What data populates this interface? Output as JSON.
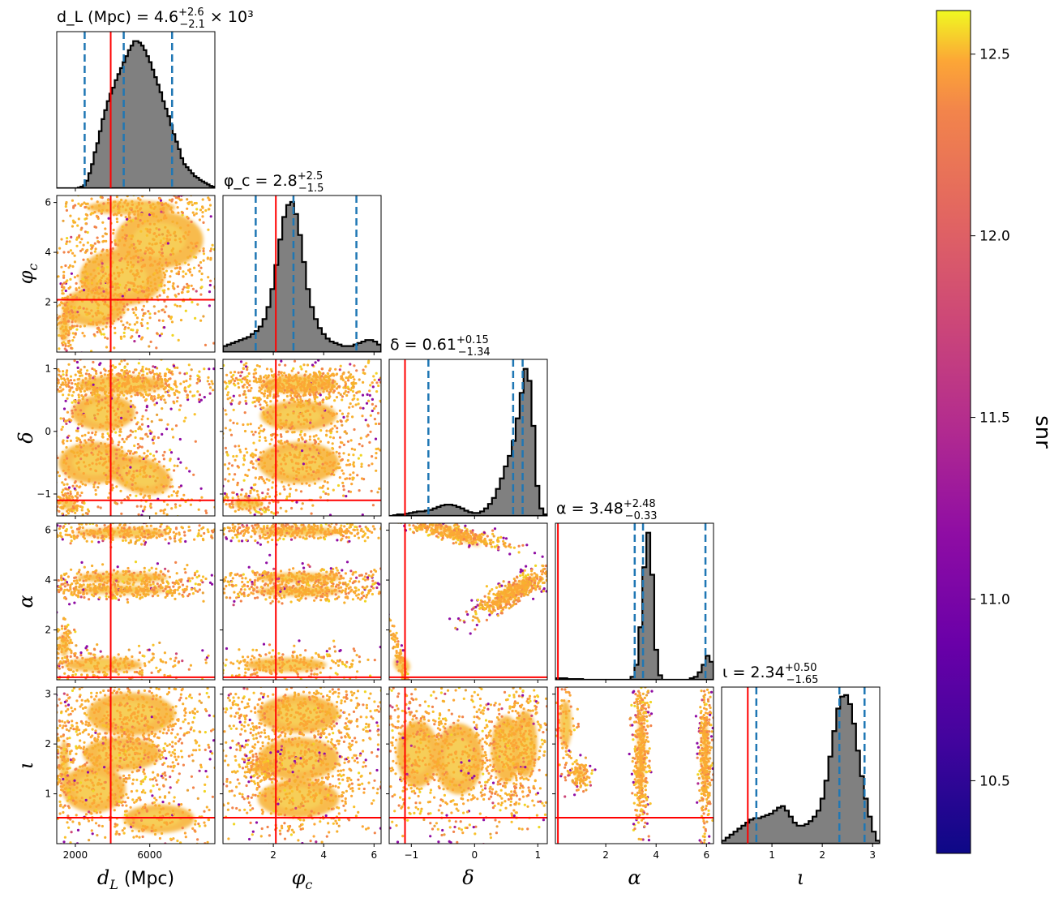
{
  "chart_data": {
    "type": "scatter",
    "layout": "corner plot (lower-triangular scatter matrix with marginal histograms)",
    "parameters": [
      {
        "key": "dL",
        "label": "d_L (Mpc)",
        "range": [
          1000,
          9500
        ],
        "ticks": [
          2000,
          6000
        ],
        "ticklabels": [
          "2000",
          "6000"
        ],
        "true_value": 3900,
        "title": {
          "pre": "d_L (Mpc) = 4.6",
          "sup": "+2.6",
          "sub": "−2.1",
          "post": " × 10³"
        },
        "quantiles": [
          2500,
          4600,
          7200
        ],
        "hist": [
          0,
          0,
          0,
          0,
          0,
          0,
          0,
          0,
          0.004,
          0.01,
          0.02,
          0.05,
          0.1,
          0.16,
          0.24,
          0.3,
          0.38,
          0.46,
          0.52,
          0.58,
          0.63,
          0.67,
          0.72,
          0.76,
          0.8,
          0.84,
          0.88,
          0.92,
          0.95,
          0.98,
          0.98,
          0.97,
          0.95,
          0.92,
          0.88,
          0.84,
          0.79,
          0.74,
          0.69,
          0.64,
          0.58,
          0.53,
          0.48,
          0.42,
          0.36,
          0.31,
          0.26,
          0.2,
          0.16,
          0.14,
          0.12,
          0.1,
          0.08,
          0.07,
          0.055,
          0.045,
          0.035,
          0.025,
          0.015,
          0.01
        ]
      },
      {
        "key": "phic",
        "label": "φ_c",
        "range": [
          0,
          6.28
        ],
        "ticks": [
          2,
          4,
          6
        ],
        "ticklabels": [
          "2",
          "4",
          "6"
        ],
        "true_value": 2.1,
        "title": {
          "pre": "φ_c = 2.8",
          "sup": "+2.5",
          "sub": "−1.5",
          "post": ""
        },
        "quantiles": [
          1.3,
          2.8,
          5.3
        ],
        "hist": [
          0.04,
          0.05,
          0.06,
          0.07,
          0.08,
          0.09,
          0.1,
          0.12,
          0.14,
          0.17,
          0.22,
          0.3,
          0.42,
          0.58,
          0.75,
          0.9,
          0.98,
          1.0,
          0.92,
          0.78,
          0.6,
          0.42,
          0.3,
          0.22,
          0.16,
          0.12,
          0.09,
          0.07,
          0.06,
          0.05,
          0.04,
          0.04,
          0.04,
          0.05,
          0.06,
          0.07,
          0.08,
          0.08,
          0.07,
          0.05
        ]
      },
      {
        "key": "delta",
        "label": "δ",
        "range": [
          -1.35,
          1.15
        ],
        "ticks": [
          -1,
          0,
          1
        ],
        "ticklabels": [
          "−1",
          "0",
          "1"
        ],
        "true_value": -1.1,
        "title": {
          "pre": "δ = 0.61",
          "sup": "+0.15",
          "sub": "−1.34",
          "post": ""
        },
        "quantiles": [
          -0.73,
          0.61,
          0.76
        ],
        "hist": [
          0,
          0.005,
          0.01,
          0.01,
          0.015,
          0.02,
          0.025,
          0.03,
          0.03,
          0.035,
          0.04,
          0.05,
          0.06,
          0.07,
          0.075,
          0.075,
          0.07,
          0.06,
          0.05,
          0.035,
          0.025,
          0.02,
          0.02,
          0.03,
          0.05,
          0.08,
          0.12,
          0.18,
          0.25,
          0.33,
          0.4,
          0.5,
          0.65,
          0.82,
          0.98,
          0.9,
          0.6,
          0.2,
          0.05,
          0.01
        ]
      },
      {
        "key": "alpha",
        "label": "α",
        "range": [
          0,
          6.28
        ],
        "ticks": [
          2,
          4,
          6
        ],
        "ticklabels": [
          "2",
          "4",
          "6"
        ],
        "true_value": 0.1,
        "title": {
          "pre": "α = 3.48",
          "sup": "+2.48",
          "sub": "−0.33",
          "post": ""
        },
        "quantiles": [
          3.15,
          3.48,
          5.96
        ],
        "hist": [
          0.01,
          0.01,
          0.01,
          0.005,
          0.005,
          0.005,
          0.005,
          0,
          0,
          0,
          0,
          0,
          0,
          0,
          0,
          0,
          0,
          0,
          0,
          0.02,
          0.1,
          0.35,
          0.75,
          0.98,
          0.7,
          0.2,
          0.03,
          0,
          0,
          0,
          0,
          0,
          0,
          0,
          0.01,
          0.02,
          0.05,
          0.1,
          0.16,
          0.12
        ]
      },
      {
        "key": "iota",
        "label": "ι",
        "range": [
          0,
          3.1416
        ],
        "ticks": [
          1,
          2,
          3
        ],
        "ticklabels": [
          "1",
          "2",
          "3"
        ],
        "true_value": 0.52,
        "title": {
          "pre": "ι = 2.34",
          "sup": "+0.50",
          "sub": "−1.65",
          "post": ""
        },
        "quantiles": [
          0.69,
          2.34,
          2.84
        ],
        "hist": [
          0.02,
          0.04,
          0.06,
          0.08,
          0.1,
          0.12,
          0.14,
          0.16,
          0.17,
          0.17,
          0.18,
          0.19,
          0.2,
          0.22,
          0.24,
          0.25,
          0.22,
          0.18,
          0.14,
          0.12,
          0.12,
          0.13,
          0.15,
          0.18,
          0.22,
          0.3,
          0.42,
          0.58,
          0.75,
          0.9,
          0.98,
          0.99,
          0.93,
          0.8,
          0.62,
          0.45,
          0.3,
          0.18,
          0.08,
          0.02
        ]
      }
    ],
    "colorbar": {
      "label": "snr",
      "cmap": "plasma",
      "range": [
        10.3,
        12.62
      ],
      "ticks": [
        10.5,
        11.0,
        11.5,
        12.0,
        12.5
      ],
      "ticklabels": [
        "10.5",
        "11.0",
        "11.5",
        "12.0",
        "12.5"
      ]
    },
    "truth_line_color": "#ff0000",
    "quantile_line_color": "#1f77b4",
    "hist_fill_color": "#808080"
  }
}
